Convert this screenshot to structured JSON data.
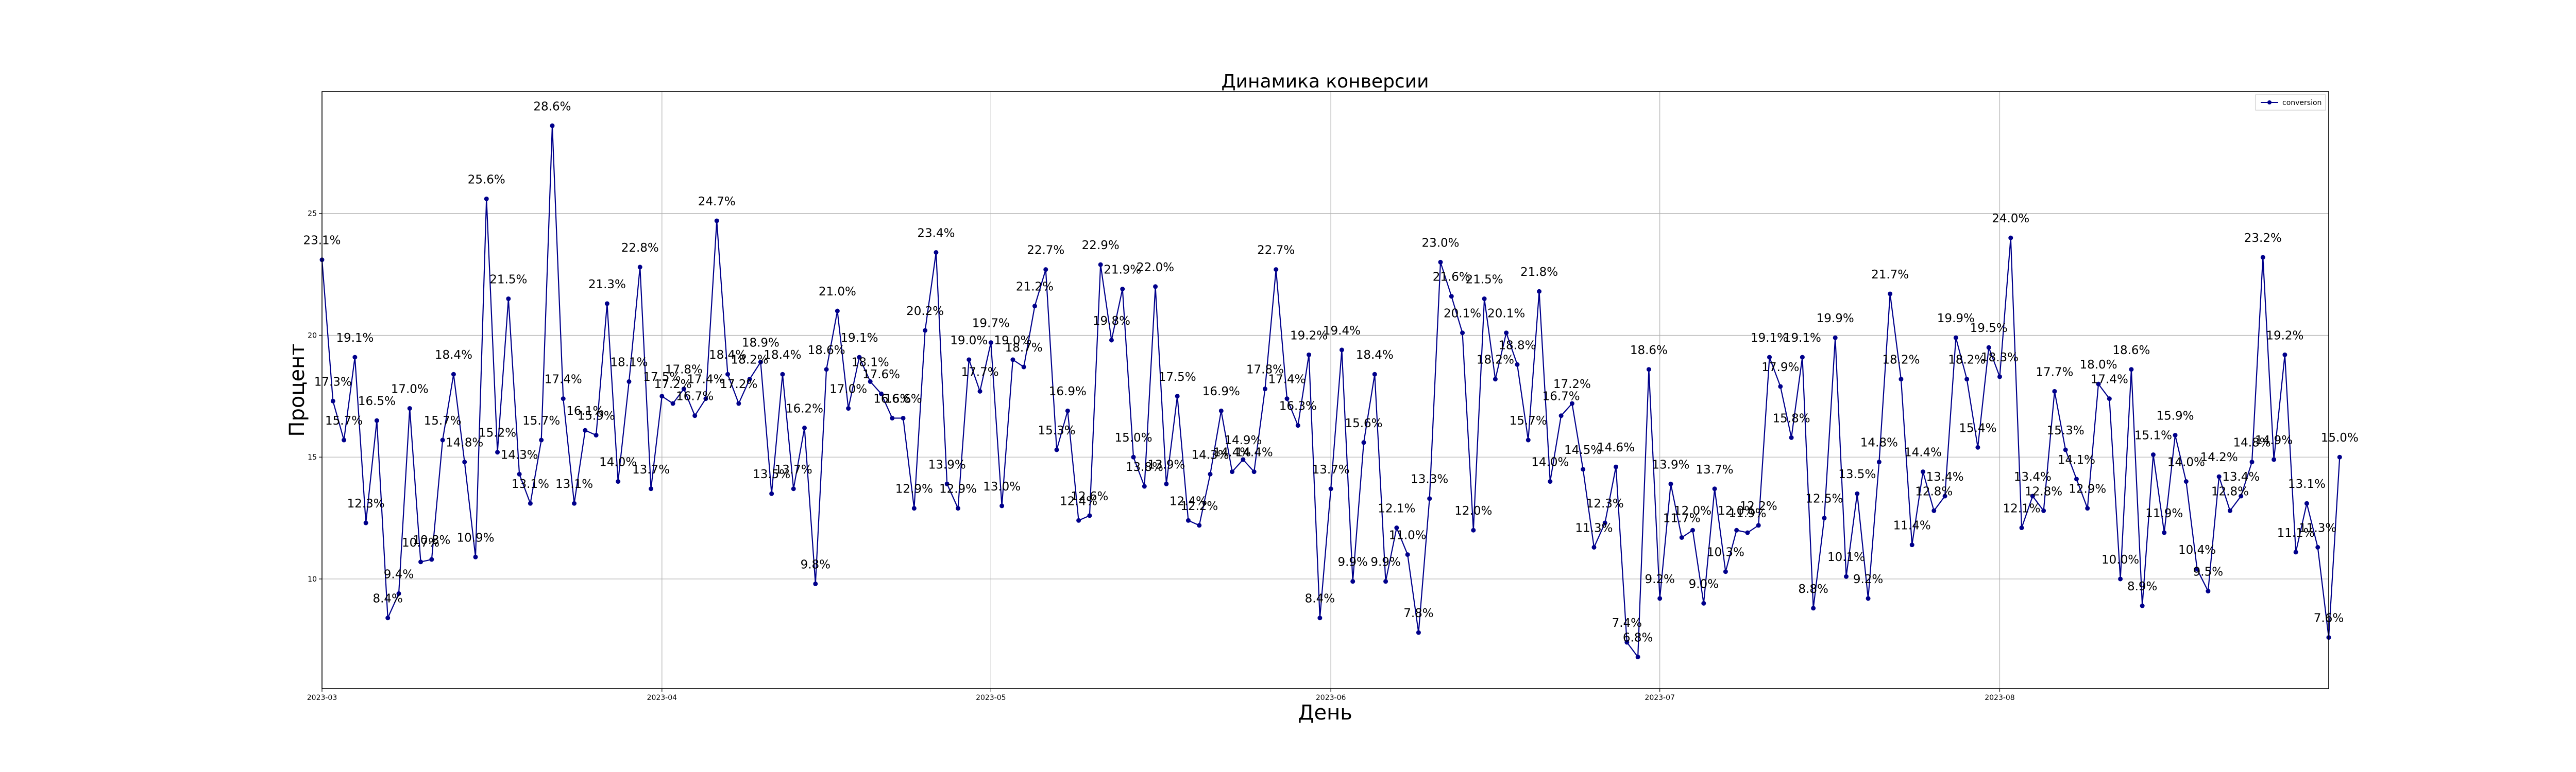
{
  "chart_data": {
    "type": "line",
    "title": "Динамика конверсии",
    "xlabel": "День",
    "ylabel": "Процент",
    "x_start": "2023-03-01",
    "x_end": "2023-08-31",
    "xlim": [
      "2023-03-01",
      "2023-08-31"
    ],
    "ylim": [
      5.5,
      30
    ],
    "xticks": [
      "2023-03-01",
      "2023-04-01",
      "2023-05-01",
      "2023-06-01",
      "2023-07-01",
      "2023-08-01"
    ],
    "xtick_labels": [
      "2023-03",
      "2023-04",
      "2023-05",
      "2023-06",
      "2023-07",
      "2023-08"
    ],
    "yticks": [
      10,
      15,
      20,
      25
    ],
    "grid": true,
    "legend_position": "top-right",
    "color": "#00008b",
    "series": [
      {
        "name": "conversion",
        "values": [
          23.1,
          17.3,
          15.7,
          19.1,
          12.3,
          16.5,
          8.4,
          9.4,
          17.0,
          10.7,
          10.8,
          15.7,
          18.4,
          14.8,
          10.9,
          25.6,
          15.2,
          21.5,
          14.3,
          13.1,
          15.7,
          28.6,
          17.4,
          13.1,
          16.1,
          15.9,
          21.3,
          14.0,
          18.1,
          22.8,
          13.7,
          17.5,
          17.2,
          17.8,
          16.7,
          17.4,
          24.7,
          18.4,
          17.2,
          18.2,
          18.9,
          13.5,
          18.4,
          13.7,
          16.2,
          9.8,
          18.6,
          21.0,
          17.0,
          19.1,
          18.1,
          17.6,
          16.6,
          16.6,
          12.9,
          20.2,
          23.4,
          13.9,
          12.9,
          19.0,
          17.7,
          19.7,
          13.0,
          19.0,
          18.7,
          21.2,
          22.7,
          15.3,
          16.9,
          12.4,
          12.6,
          22.9,
          19.8,
          21.9,
          15.0,
          13.8,
          22.0,
          13.9,
          17.5,
          12.4,
          12.2,
          14.3,
          16.9,
          14.4,
          14.9,
          14.4,
          17.8,
          22.7,
          17.4,
          16.3,
          19.2,
          8.4,
          13.7,
          19.4,
          9.9,
          15.6,
          18.4,
          9.9,
          12.1,
          11.0,
          7.8,
          13.3,
          23.0,
          21.6,
          20.1,
          12.0,
          21.5,
          18.2,
          20.1,
          18.8,
          15.7,
          21.8,
          14.0,
          16.7,
          17.2,
          14.5,
          11.3,
          12.3,
          14.6,
          7.4,
          6.8,
          18.6,
          9.2,
          13.9,
          11.7,
          12.0,
          9.0,
          13.7,
          10.3,
          12.0,
          11.9,
          12.2,
          19.1,
          17.9,
          15.8,
          19.1,
          8.8,
          12.5,
          19.9,
          10.1,
          13.5,
          9.2,
          14.8,
          21.7,
          18.2,
          11.4,
          14.4,
          12.8,
          13.4,
          19.9,
          18.2,
          15.4,
          19.5,
          18.3,
          24.0,
          12.1,
          13.4,
          12.8,
          17.7,
          15.3,
          14.1,
          12.9,
          18.0,
          17.4,
          10.0,
          18.6,
          8.9,
          15.1,
          11.9,
          15.9,
          14.0,
          10.4,
          9.5,
          14.2,
          12.8,
          13.4,
          14.8,
          23.2,
          14.9,
          19.2,
          11.1,
          13.1,
          11.3,
          7.6,
          15.0
        ]
      }
    ]
  }
}
